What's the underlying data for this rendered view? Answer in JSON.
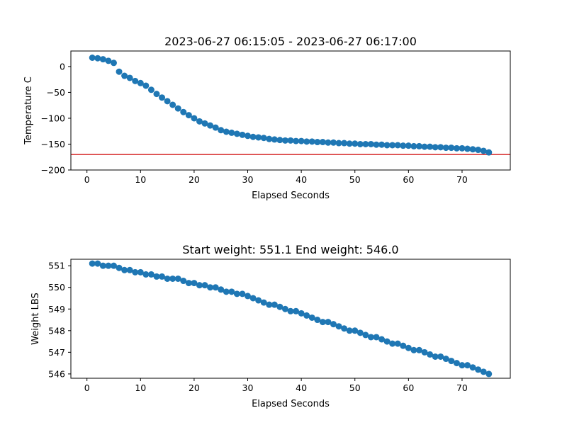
{
  "colors": {
    "series": "#1f77b4",
    "reference_line": "#d62728",
    "axes": "#000000"
  },
  "chart_data": [
    {
      "type": "scatter",
      "title": "2023-06-27 06:15:05 - 2023-06-27 06:17:00",
      "xlabel": "Elapsed Seconds",
      "ylabel": "Temperature C",
      "xlim": [
        -3,
        79
      ],
      "ylim": [
        -200,
        30
      ],
      "xticks": [
        0,
        10,
        20,
        30,
        40,
        50,
        60,
        70
      ],
      "yticks": [
        0,
        -50,
        -100,
        -150,
        -200
      ],
      "grid": false,
      "hline": -170,
      "x": [
        1,
        2,
        3,
        4,
        5,
        6,
        7,
        8,
        9,
        10,
        11,
        12,
        13,
        14,
        15,
        16,
        17,
        18,
        19,
        20,
        21,
        22,
        23,
        24,
        25,
        26,
        27,
        28,
        29,
        30,
        31,
        32,
        33,
        34,
        35,
        36,
        37,
        38,
        39,
        40,
        41,
        42,
        43,
        44,
        45,
        46,
        47,
        48,
        49,
        50,
        51,
        52,
        53,
        54,
        55,
        56,
        57,
        58,
        59,
        60,
        61,
        62,
        63,
        64,
        65,
        66,
        67,
        68,
        69,
        70,
        71,
        72,
        73,
        74,
        75
      ],
      "y": [
        17,
        16,
        14,
        11,
        7,
        -10,
        -18,
        -22,
        -28,
        -32,
        -37,
        -45,
        -53,
        -60,
        -67,
        -74,
        -81,
        -88,
        -94,
        -100,
        -106,
        -110,
        -114,
        -118,
        -123,
        -126,
        -128,
        -130,
        -132,
        -134,
        -136,
        -137,
        -138,
        -140,
        -141,
        -142,
        -143,
        -143,
        -144,
        -144,
        -145,
        -145,
        -146,
        -146,
        -147,
        -147,
        -148,
        -148,
        -149,
        -149,
        -150,
        -150,
        -150,
        -151,
        -151,
        -152,
        -152,
        -152,
        -153,
        -153,
        -154,
        -154,
        -155,
        -155,
        -156,
        -156,
        -157,
        -157,
        -158,
        -158,
        -159,
        -160,
        -161,
        -163,
        -166
      ]
    },
    {
      "type": "scatter",
      "title": "Start weight: 551.1 End weight: 546.0",
      "xlabel": "Elapsed Seconds",
      "ylabel": "Weight LBS",
      "xlim": [
        -3,
        79
      ],
      "ylim": [
        545.8,
        551.3
      ],
      "xticks": [
        0,
        10,
        20,
        30,
        40,
        50,
        60,
        70
      ],
      "yticks": [
        546,
        547,
        548,
        549,
        550,
        551
      ],
      "grid": false,
      "x": [
        1,
        2,
        3,
        4,
        5,
        6,
        7,
        8,
        9,
        10,
        11,
        12,
        13,
        14,
        15,
        16,
        17,
        18,
        19,
        20,
        21,
        22,
        23,
        24,
        25,
        26,
        27,
        28,
        29,
        30,
        31,
        32,
        33,
        34,
        35,
        36,
        37,
        38,
        39,
        40,
        41,
        42,
        43,
        44,
        45,
        46,
        47,
        48,
        49,
        50,
        51,
        52,
        53,
        54,
        55,
        56,
        57,
        58,
        59,
        60,
        61,
        62,
        63,
        64,
        65,
        66,
        67,
        68,
        69,
        70,
        71,
        72,
        73,
        74,
        75
      ],
      "y": [
        551.1,
        551.1,
        551.0,
        551.0,
        551.0,
        550.9,
        550.8,
        550.8,
        550.7,
        550.7,
        550.6,
        550.6,
        550.5,
        550.5,
        550.4,
        550.4,
        550.4,
        550.3,
        550.2,
        550.2,
        550.1,
        550.1,
        550.0,
        550.0,
        549.9,
        549.8,
        549.8,
        549.7,
        549.7,
        549.6,
        549.5,
        549.4,
        549.3,
        549.2,
        549.2,
        549.1,
        549.0,
        548.9,
        548.9,
        548.8,
        548.7,
        548.6,
        548.5,
        548.4,
        548.4,
        548.3,
        548.2,
        548.1,
        548.0,
        548.0,
        547.9,
        547.8,
        547.7,
        547.7,
        547.6,
        547.5,
        547.4,
        547.4,
        547.3,
        547.2,
        547.1,
        547.1,
        547.0,
        546.9,
        546.8,
        546.8,
        546.7,
        546.6,
        546.5,
        546.4,
        546.4,
        546.3,
        546.2,
        546.1,
        546.0
      ]
    }
  ]
}
